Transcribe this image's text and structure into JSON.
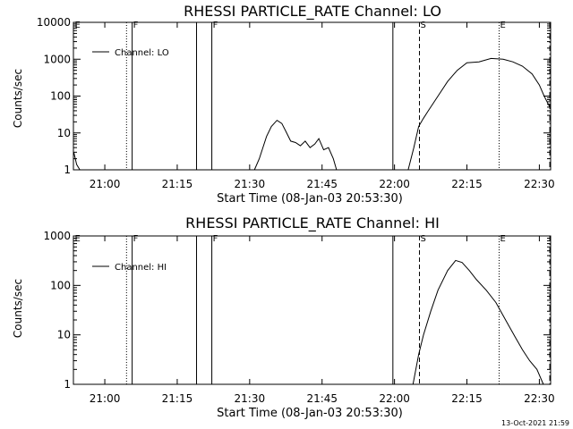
{
  "footer_timestamp": "13-Oct-2021 21:59",
  "chart_data": [
    {
      "type": "line",
      "title": "RHESSI PARTICLE_RATE Channel: LO",
      "xlabel": "Start Time (08-Jan-03 20:53:30)",
      "ylabel": "Counts/sec",
      "yscale": "log",
      "ylim": [
        1,
        10000
      ],
      "xlim": [
        "20:53:30",
        "22:32:20"
      ],
      "xticks": [
        "21:00",
        "21:15",
        "21:30",
        "21:45",
        "22:00",
        "22:15",
        "22:30"
      ],
      "yticks": [
        "1",
        "10",
        "100",
        "1000",
        "10000"
      ],
      "legend": {
        "label": "Channel: LO",
        "position": "top-left"
      },
      "markers": [
        {
          "label": "E",
          "time": "20:53:35",
          "style": "none"
        },
        {
          "label": "",
          "time": "21:04:30",
          "style": "dotted"
        },
        {
          "label": "F",
          "time": "21:05:40",
          "style": "solid"
        },
        {
          "label": "",
          "time": "21:19:00",
          "style": "solid"
        },
        {
          "label": "F",
          "time": "21:22:10",
          "style": "solid"
        },
        {
          "label": "",
          "time": "21:59:40",
          "style": "solid"
        },
        {
          "label": "S",
          "time": "22:05:10",
          "style": "dashed"
        },
        {
          "label": "E",
          "time": "22:21:40",
          "style": "dotted"
        },
        {
          "label": "",
          "time": "22:32:10",
          "style": "dashdot"
        }
      ],
      "segments": [
        {
          "x": [
            "20:53:35",
            "20:54:10",
            "20:54:50"
          ],
          "y": [
            3,
            1.4,
            1
          ]
        },
        {
          "x": [
            "21:31:00",
            "21:32:00",
            "21:33:30",
            "21:34:30",
            "21:35:40",
            "21:36:40",
            "21:37:30",
            "21:38:30",
            "21:39:30",
            "21:40:30",
            "21:41:30",
            "21:42:30",
            "21:43:30",
            "21:44:20",
            "21:45:20",
            "21:46:20",
            "21:47:20",
            "21:48:00"
          ],
          "y": [
            1,
            2,
            8,
            15,
            22,
            18,
            11,
            6,
            5.5,
            4.5,
            6,
            4,
            5,
            7,
            3.5,
            4,
            2,
            1
          ]
        },
        {
          "x": [
            "22:02:50",
            "22:04:00",
            "22:05:00",
            "22:06:00",
            "22:07:00",
            "22:09:00",
            "22:11:00",
            "22:13:00",
            "22:15:00",
            "22:17:30",
            "22:20:00",
            "22:22:30",
            "22:24:30",
            "22:26:30",
            "22:28:30",
            "22:30:00",
            "22:31:00",
            "22:32:10"
          ],
          "y": [
            1,
            4,
            15,
            25,
            40,
            100,
            250,
            500,
            800,
            850,
            1050,
            1000,
            850,
            650,
            400,
            200,
            100,
            50
          ]
        }
      ]
    },
    {
      "type": "line",
      "title": "RHESSI PARTICLE_RATE Channel: HI",
      "xlabel": "Start Time (08-Jan-03 20:53:30)",
      "ylabel": "Counts/sec",
      "yscale": "log",
      "ylim": [
        1,
        1000
      ],
      "xlim": [
        "20:53:30",
        "22:32:20"
      ],
      "xticks": [
        "21:00",
        "21:15",
        "21:30",
        "21:45",
        "22:00",
        "22:15",
        "22:30"
      ],
      "yticks": [
        "1",
        "10",
        "100",
        "1000"
      ],
      "legend": {
        "label": "Channel: HI",
        "position": "top-left"
      },
      "markers": [
        {
          "label": "E",
          "time": "20:53:35",
          "style": "none"
        },
        {
          "label": "",
          "time": "21:04:30",
          "style": "dotted"
        },
        {
          "label": "F",
          "time": "21:05:40",
          "style": "solid"
        },
        {
          "label": "",
          "time": "21:19:00",
          "style": "solid"
        },
        {
          "label": "F",
          "time": "21:22:10",
          "style": "solid"
        },
        {
          "label": "",
          "time": "21:59:40",
          "style": "solid"
        },
        {
          "label": "S",
          "time": "22:05:10",
          "style": "dashed"
        },
        {
          "label": "E",
          "time": "22:21:40",
          "style": "dotted"
        },
        {
          "label": "",
          "time": "22:32:10",
          "style": "dashdot"
        }
      ],
      "segments": [
        {
          "x": [
            "22:03:50",
            "22:05:00",
            "22:06:00",
            "22:07:30",
            "22:09:00",
            "22:11:00",
            "22:12:40",
            "22:14:00",
            "22:15:30",
            "22:17:00",
            "22:19:00",
            "22:21:00",
            "22:23:00",
            "22:25:00",
            "22:26:30",
            "22:28:00",
            "22:29:30",
            "22:30:50"
          ],
          "y": [
            1,
            4,
            10,
            30,
            80,
            200,
            320,
            290,
            200,
            130,
            80,
            45,
            20,
            9,
            5,
            3,
            2,
            1
          ]
        }
      ]
    }
  ]
}
